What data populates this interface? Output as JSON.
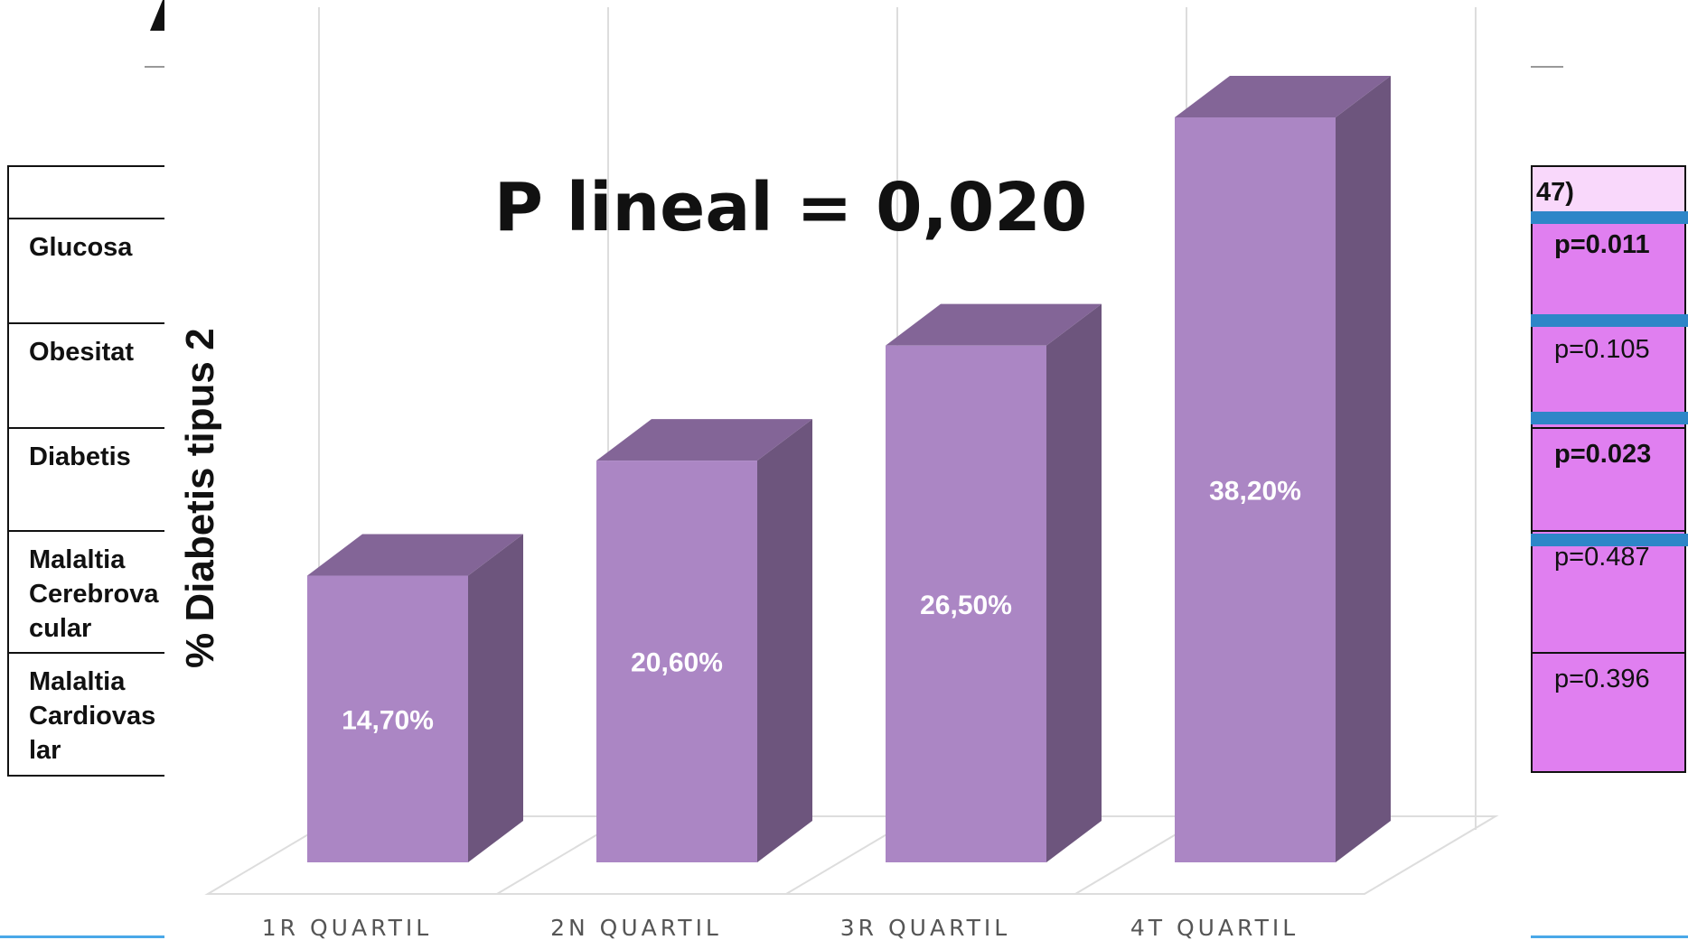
{
  "left_table": {
    "rows": [
      {
        "label": ""
      },
      {
        "label": "Glucosa"
      },
      {
        "label": "Obesitat"
      },
      {
        "label": "Diabetis"
      },
      {
        "label": "Malaltia\nCerebrova\ncular"
      },
      {
        "label": "Malaltia\nCardiovas\nlar"
      }
    ]
  },
  "right_table": {
    "header": "47)",
    "rows": [
      {
        "value": "p=0.011",
        "bold": true
      },
      {
        "value": "p=0.105",
        "bold": false
      },
      {
        "value": "p=0.023",
        "bold": true
      },
      {
        "value": "p=0.487",
        "bold": false
      },
      {
        "value": "p=0.396",
        "bold": false
      }
    ]
  },
  "colors": {
    "bar_front": "#ab86c4",
    "bar_top": "#836597",
    "bar_side": "#6d557d",
    "cell_fill": "#e07ff0",
    "header_fill": "#f9d8fb",
    "separator": "#2e86c8"
  },
  "chart_data": {
    "type": "bar",
    "style": "3d",
    "categories": [
      "1R QUARTIL",
      "2N QUARTIL",
      "3R QUARTIL",
      "4T QUARTIL"
    ],
    "values": [
      14.7,
      20.6,
      26.5,
      38.2
    ],
    "data_labels": [
      "14,70%",
      "20,60%",
      "26,50%",
      "38,20%"
    ],
    "ylabel": "% Diabetis tipus 2",
    "annotation": "P lineal = 0,020",
    "ylim": [
      0,
      40
    ],
    "grid": true,
    "legend": "none"
  }
}
